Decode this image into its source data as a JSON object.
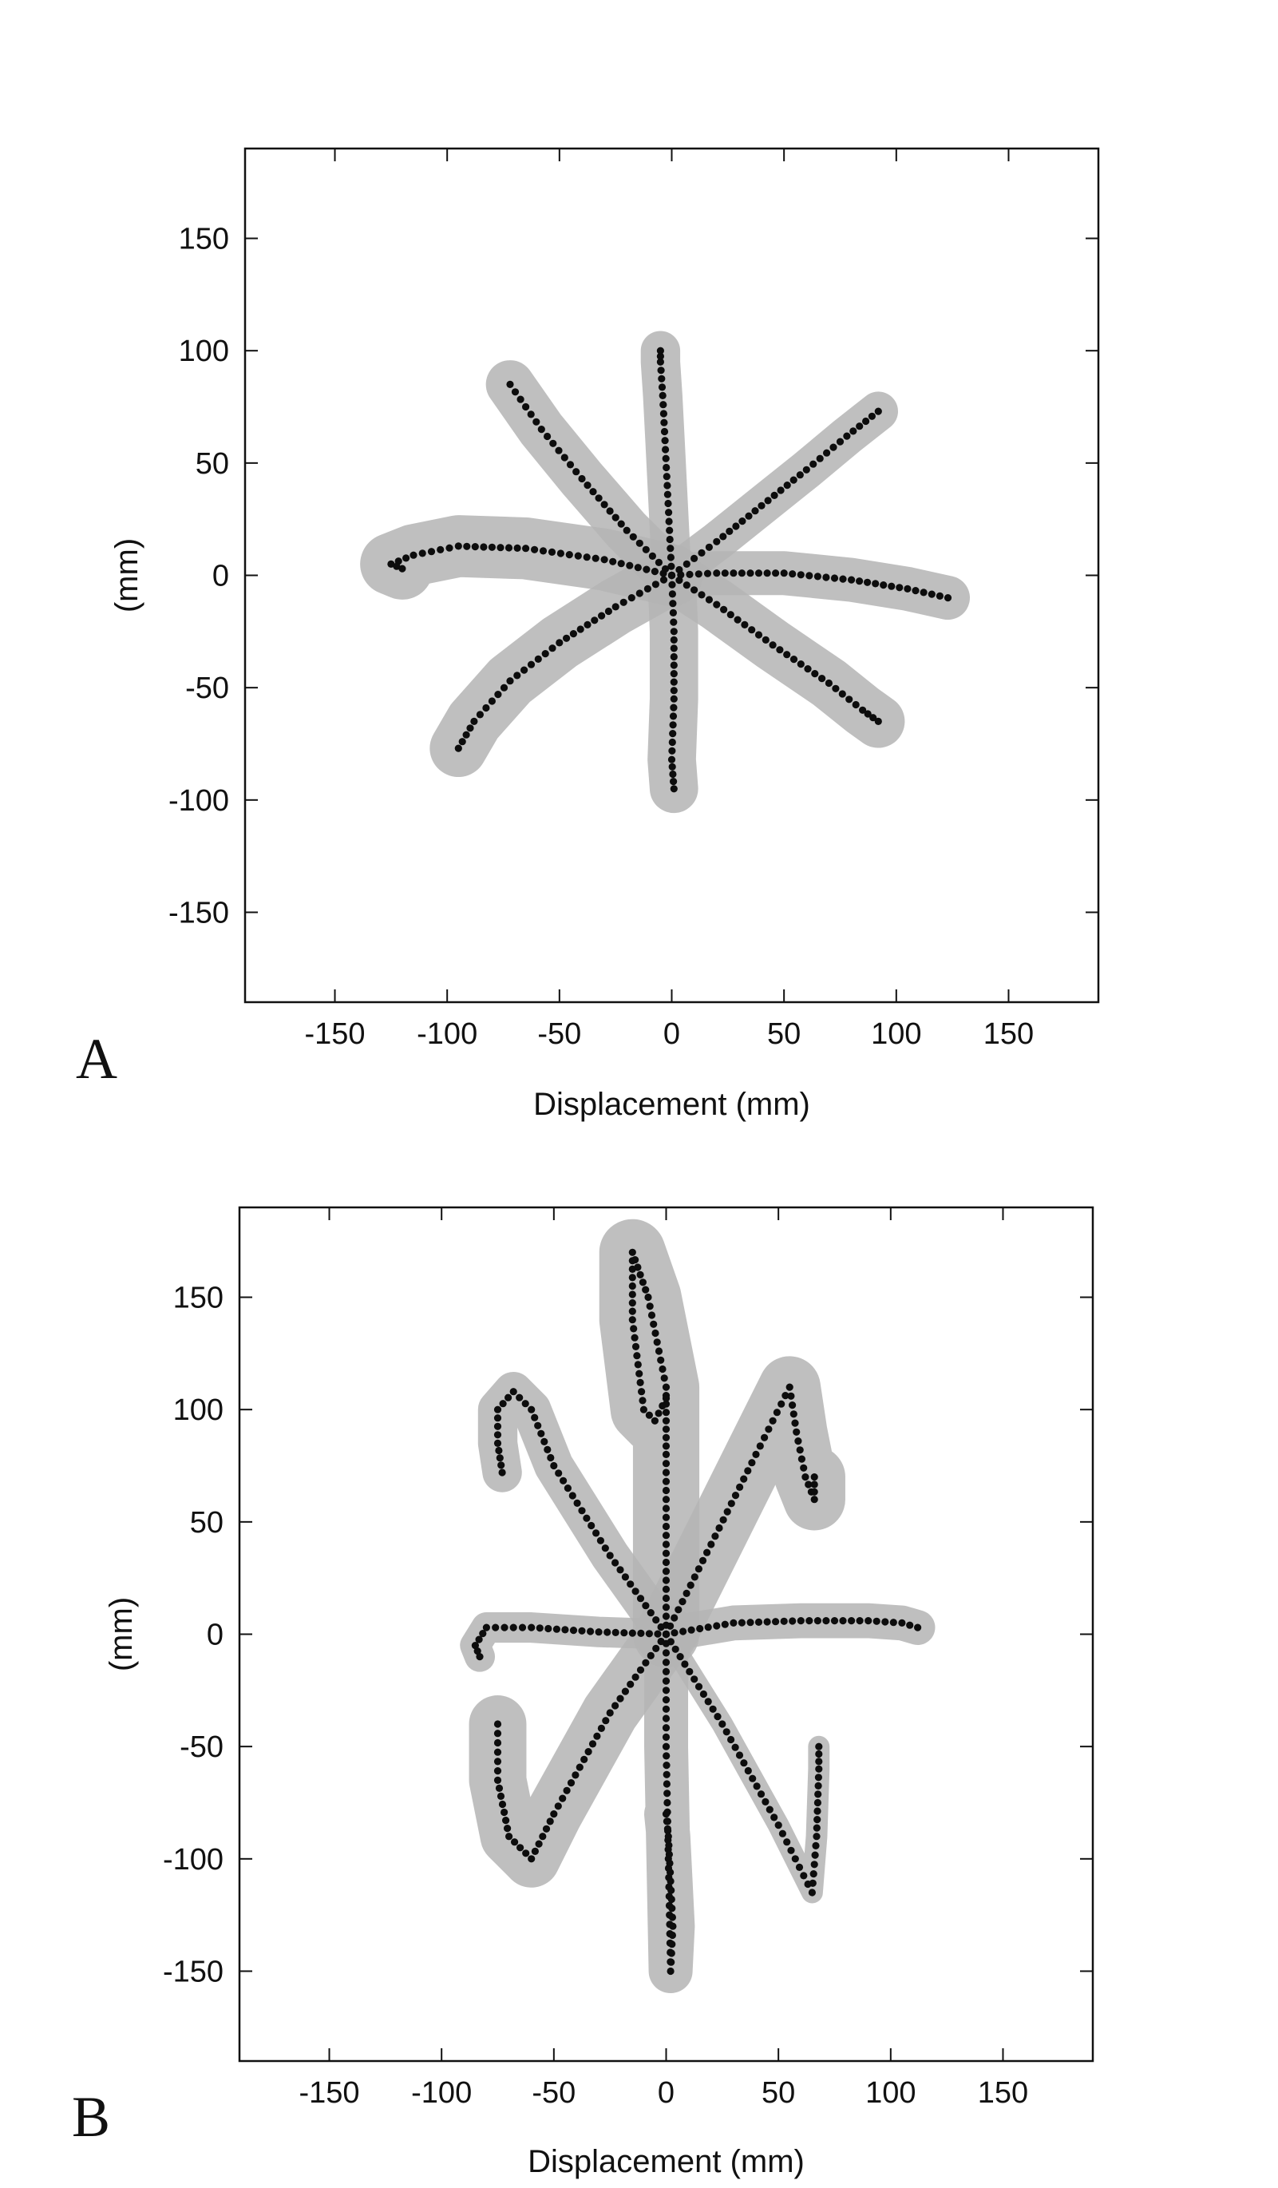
{
  "colors": {
    "trajectory": "#0d0d0d",
    "envelope": "#b4b4b4",
    "axes": "#111111"
  },
  "chart_data": [
    {
      "type": "scatter",
      "panel_label": "A",
      "xlabel": "Displacement (mm)",
      "ylabel": "(mm)",
      "xlim": [
        -190,
        190
      ],
      "ylim": [
        -190,
        190
      ],
      "xticks": [
        -150,
        -100,
        -50,
        0,
        50,
        100,
        150
      ],
      "yticks": [
        -150,
        -100,
        -50,
        0,
        50,
        100,
        150
      ],
      "grid": false,
      "series": [
        {
          "x": [
            0,
            -1,
            -2,
            -3,
            -4,
            -5,
            -5
          ],
          "y": [
            0,
            20,
            40,
            60,
            80,
            95,
            100
          ],
          "envelope": 7
        },
        {
          "x": [
            0,
            20,
            40,
            60,
            78,
            92
          ],
          "y": [
            0,
            15,
            31,
            47,
            62,
            73
          ],
          "envelope": 7
        },
        {
          "x": [
            0,
            20,
            50,
            80,
            105,
            123
          ],
          "y": [
            0,
            1,
            1,
            -2,
            -6,
            -10
          ],
          "envelope": 8
        },
        {
          "x": [
            0,
            20,
            45,
            70,
            85,
            92
          ],
          "y": [
            0,
            -13,
            -31,
            -48,
            -60,
            -65
          ],
          "envelope": 10
        },
        {
          "x": [
            0,
            1,
            1,
            0,
            1
          ],
          "y": [
            0,
            -25,
            -55,
            -82,
            -95
          ],
          "envelope": 9
        },
        {
          "x": [
            0,
            -25,
            -50,
            -72,
            -88,
            -95
          ],
          "y": [
            0,
            -14,
            -30,
            -47,
            -65,
            -77
          ],
          "envelope": 11
        },
        {
          "x": [
            0,
            -30,
            -65,
            -95,
            -115,
            -125,
            -120
          ],
          "y": [
            0,
            7,
            12,
            13,
            9,
            5,
            3
          ],
          "envelope": 12
        },
        {
          "x": [
            0,
            -20,
            -40,
            -58,
            -72
          ],
          "y": [
            0,
            20,
            43,
            65,
            85
          ],
          "envelope": 9
        }
      ]
    },
    {
      "type": "scatter",
      "panel_label": "B",
      "xlabel": "Displacement (mm)",
      "ylabel": "(mm)",
      "xlim": [
        -190,
        190
      ],
      "ylim": [
        -190,
        190
      ],
      "xticks": [
        -150,
        -100,
        -50,
        0,
        50,
        100,
        150
      ],
      "yticks": [
        -150,
        -100,
        -50,
        0,
        50,
        100,
        150
      ],
      "grid": false,
      "series": [
        {
          "x": [
            0,
            0,
            0,
            0,
            -8,
            -15,
            -15,
            -10,
            -5,
            0
          ],
          "y": [
            0,
            40,
            80,
            110,
            150,
            170,
            140,
            100,
            95,
            105
          ],
          "envelope": 13
        },
        {
          "x": [
            0,
            20,
            40,
            55,
            58,
            62,
            66,
            66
          ],
          "y": [
            0,
            40,
            80,
            110,
            90,
            70,
            60,
            70
          ],
          "envelope": 12
        },
        {
          "x": [
            0,
            30,
            60,
            90,
            105,
            112
          ],
          "y": [
            0,
            5,
            6,
            6,
            5,
            3
          ],
          "envelope": 6
        },
        {
          "x": [
            0,
            25,
            50,
            65,
            67,
            68,
            68
          ],
          "y": [
            0,
            -40,
            -85,
            -115,
            -90,
            -60,
            -50
          ],
          "envelope": 3
        },
        {
          "x": [
            0,
            0,
            1,
            2,
            3,
            1,
            0
          ],
          "y": [
            0,
            -50,
            -100,
            -150,
            -130,
            -90,
            -80
          ],
          "envelope": 8
        },
        {
          "x": [
            0,
            -25,
            -50,
            -60,
            -70,
            -75,
            -75
          ],
          "y": [
            0,
            -35,
            -80,
            -100,
            -90,
            -65,
            -40
          ],
          "envelope": 11
        },
        {
          "x": [
            0,
            -30,
            -60,
            -80,
            -85,
            -83
          ],
          "y": [
            0,
            1,
            3,
            3,
            -5,
            -10
          ],
          "envelope": 5
        },
        {
          "x": [
            0,
            -25,
            -50,
            -60,
            -68,
            -75,
            -75,
            -73
          ],
          "y": [
            0,
            35,
            75,
            100,
            108,
            100,
            85,
            72
          ],
          "envelope": 7
        }
      ]
    }
  ]
}
